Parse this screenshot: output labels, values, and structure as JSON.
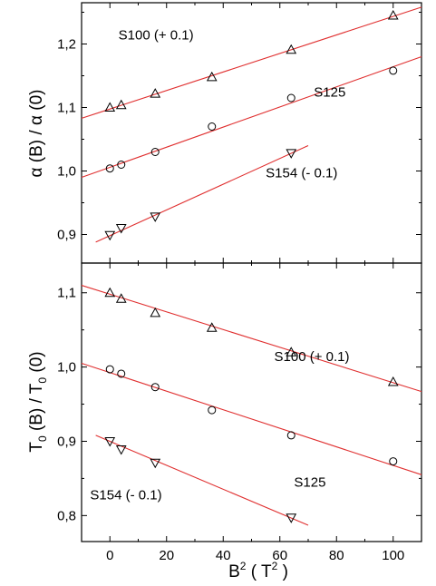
{
  "chart_data": [
    {
      "type": "scatter",
      "panel": "top",
      "xlim": [
        -10,
        110
      ],
      "ylim": [
        0.855,
        1.265
      ],
      "yticks": [
        0.9,
        1.0,
        1.1,
        1.2
      ],
      "yticklabels": [
        "0,9",
        "1,0",
        "1,1",
        "1,2"
      ],
      "ylabel": {
        "pre": "α (B) / α (0)"
      },
      "series": [
        {
          "name": "S100 (+ 0.1)",
          "marker": "triangle-up",
          "x": [
            0,
            4,
            16,
            36,
            64,
            100
          ],
          "y": [
            1.1,
            1.104,
            1.122,
            1.148,
            1.191,
            1.245
          ],
          "fit": {
            "x": [
              -10,
              110
            ],
            "y": [
              1.083,
              1.258
            ]
          }
        },
        {
          "name": "S125",
          "marker": "circle",
          "x": [
            0,
            4,
            16,
            36,
            64,
            100
          ],
          "y": [
            1.004,
            1.01,
            1.03,
            1.07,
            1.115,
            1.158
          ],
          "fit": {
            "x": [
              -10,
              110
            ],
            "y": [
              0.99,
              1.18
            ]
          }
        },
        {
          "name": "S154 (- 0.1)",
          "marker": "triangle-down",
          "x": [
            0,
            4,
            16,
            64
          ],
          "y": [
            0.899,
            0.91,
            0.928,
            1.028
          ],
          "fit": {
            "x": [
              -5,
              70
            ],
            "y": [
              0.888,
              1.04
            ]
          }
        }
      ],
      "labels": [
        {
          "text": "S100 (+ 0.1)",
          "x": 3,
          "y": 1.207
        },
        {
          "text": "S125",
          "x": 72,
          "y": 1.117
        },
        {
          "text": "S154 (- 0.1)",
          "x": 55,
          "y": 0.99
        }
      ]
    },
    {
      "type": "scatter",
      "panel": "bottom",
      "xlim": [
        -10,
        110
      ],
      "ylim": [
        0.765,
        1.14
      ],
      "xticks": [
        0,
        20,
        40,
        60,
        80,
        100
      ],
      "xticklabels": [
        "0",
        "20",
        "40",
        "60",
        "80",
        "100"
      ],
      "yticks": [
        0.8,
        0.9,
        1.0,
        1.1
      ],
      "yticklabels": [
        "0,8",
        "0,9",
        "1,0",
        "1,1"
      ],
      "xlabel": {
        "base": "B",
        "sup": "2",
        "mid": " ( T",
        "sup2": "2",
        "post": " )"
      },
      "ylabel": {
        "base": "T",
        "sub": "0",
        "mid": " (B) / T",
        "sub2": "0",
        "post": " (0)"
      },
      "series": [
        {
          "name": "S100 (+ 0.1)",
          "marker": "triangle-up",
          "x": [
            0,
            4,
            16,
            36,
            64,
            100
          ],
          "y": [
            1.1,
            1.092,
            1.073,
            1.053,
            1.02,
            0.98
          ],
          "fit": {
            "x": [
              -10,
              110
            ],
            "y": [
              1.11,
              0.967
            ]
          }
        },
        {
          "name": "S125",
          "marker": "circle",
          "x": [
            0,
            4,
            16,
            36,
            64,
            100
          ],
          "y": [
            0.997,
            0.991,
            0.973,
            0.942,
            0.908,
            0.873
          ],
          "fit": {
            "x": [
              -10,
              110
            ],
            "y": [
              1.005,
              0.855
            ]
          }
        },
        {
          "name": "S154 (- 0.1)",
          "marker": "triangle-down",
          "x": [
            0,
            4,
            16,
            64
          ],
          "y": [
            0.9,
            0.889,
            0.871,
            0.797
          ],
          "fit": {
            "x": [
              -5,
              70
            ],
            "y": [
              0.908,
              0.787
            ]
          }
        }
      ],
      "labels": [
        {
          "text": "S100 (+ 0.1)",
          "x": 58,
          "y": 1.008
        },
        {
          "text": "S125",
          "x": 65,
          "y": 0.839
        },
        {
          "text": "S154 (- 0.1)",
          "x": -7,
          "y": 0.822
        }
      ]
    }
  ],
  "colors": {
    "fit_line": "#e03030",
    "marker": "#000000",
    "axis": "#000000"
  }
}
